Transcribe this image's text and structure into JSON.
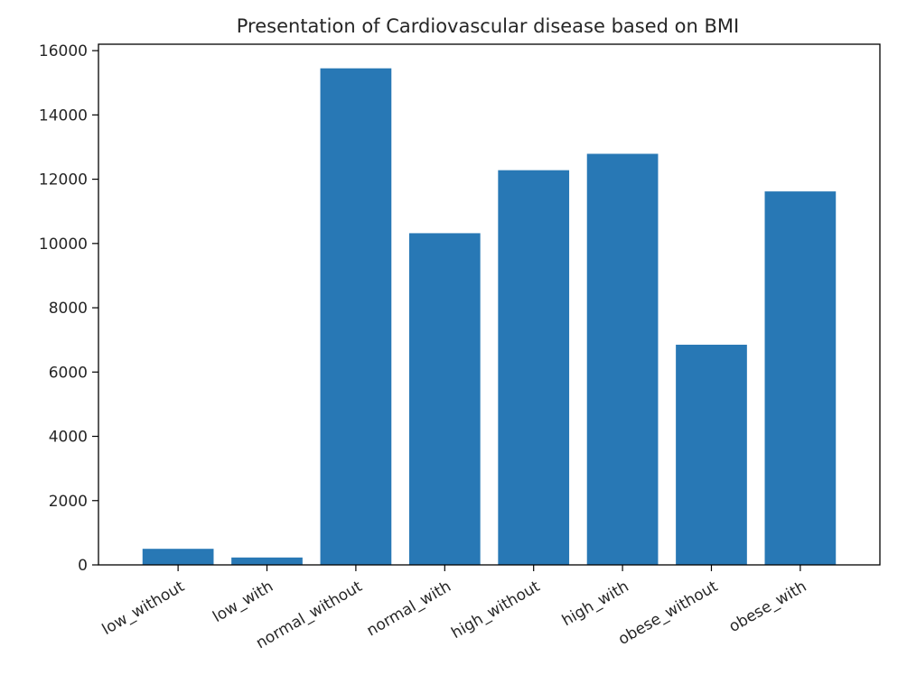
{
  "chart_data": {
    "type": "bar",
    "title": "Presentation of Cardiovascular disease based on BMI",
    "xlabel": "",
    "ylabel": "",
    "categories": [
      "low_without",
      "low_with",
      "normal_without",
      "normal_with",
      "high_without",
      "high_with",
      "obese_without",
      "obese_with"
    ],
    "values": [
      500,
      230,
      15450,
      10320,
      12280,
      12790,
      6850,
      11620
    ],
    "ylim": [
      0,
      16200
    ],
    "yticks": [
      0,
      2000,
      4000,
      6000,
      8000,
      10000,
      12000,
      14000,
      16000
    ],
    "bar_color": "#2878b5",
    "grid": false,
    "x_tick_rotation": -30
  }
}
